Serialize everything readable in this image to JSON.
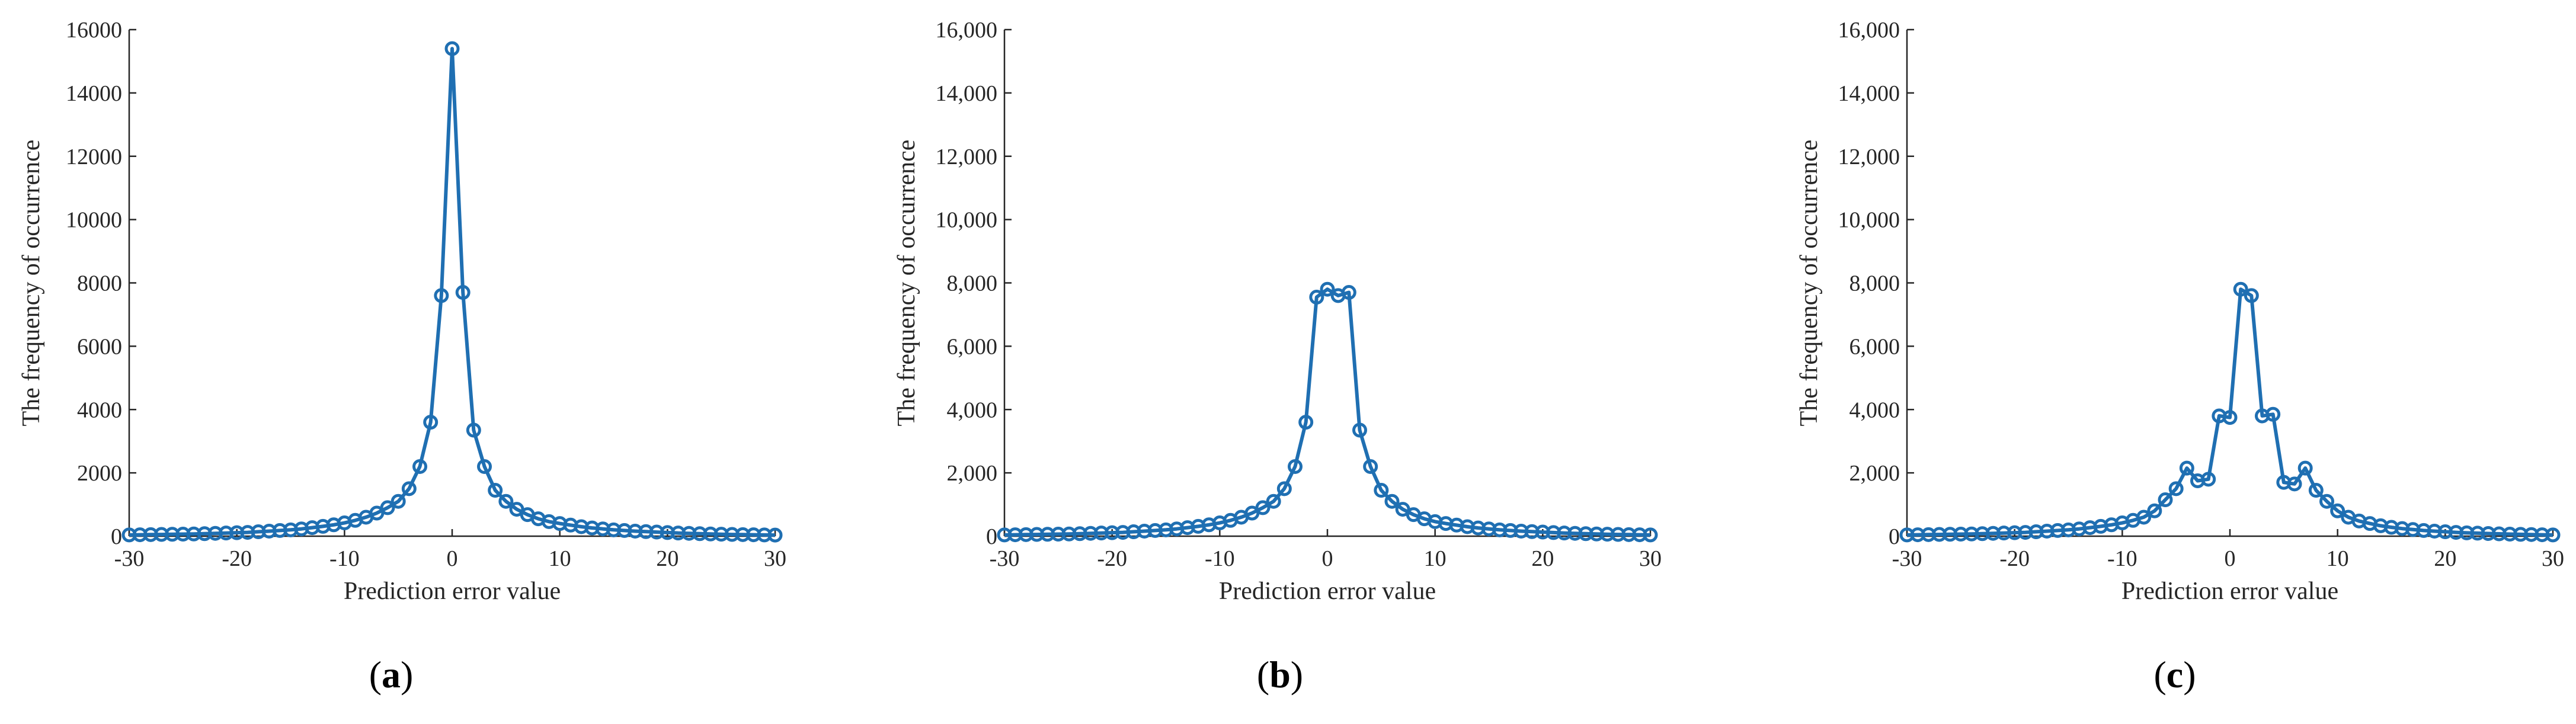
{
  "colors": {
    "series": "#1f6fb2",
    "axis": "#262626"
  },
  "chart_data": [
    {
      "type": "line",
      "panel_label": "a",
      "xlabel": "Prediction error value",
      "ylabel": "The frequency of occurrence",
      "xlim": [
        -30,
        30
      ],
      "ylim": [
        0,
        16000
      ],
      "xticks": [
        -30,
        -20,
        -10,
        0,
        10,
        20,
        30
      ],
      "xtick_labels": [
        "-30",
        "-20",
        "-10",
        "0",
        "10",
        "20",
        "30"
      ],
      "yticks": [
        0,
        2000,
        4000,
        6000,
        8000,
        10000,
        12000,
        14000,
        16000
      ],
      "ytick_labels": [
        "0",
        "2000",
        "4000",
        "6000",
        "8000",
        "10000",
        "12000",
        "14000",
        "16000"
      ],
      "grid": false,
      "marker": "circle",
      "x": [
        -30,
        -29,
        -28,
        -27,
        -26,
        -25,
        -24,
        -23,
        -22,
        -21,
        -20,
        -19,
        -18,
        -17,
        -16,
        -15,
        -14,
        -13,
        -12,
        -11,
        -10,
        -9,
        -8,
        -7,
        -6,
        -5,
        -4,
        -3,
        -2,
        -1,
        0,
        1,
        2,
        3,
        4,
        5,
        6,
        7,
        8,
        9,
        10,
        11,
        12,
        13,
        14,
        15,
        16,
        17,
        18,
        19,
        20,
        21,
        22,
        23,
        24,
        25,
        26,
        27,
        28,
        29,
        30
      ],
      "y": [
        40,
        45,
        50,
        55,
        60,
        65,
        70,
        80,
        90,
        100,
        110,
        120,
        140,
        160,
        180,
        200,
        230,
        270,
        310,
        360,
        420,
        500,
        600,
        730,
        900,
        1100,
        1500,
        2200,
        3600,
        7600,
        15400,
        7700,
        3350,
        2200,
        1450,
        1100,
        850,
        680,
        550,
        460,
        400,
        350,
        300,
        260,
        230,
        200,
        180,
        160,
        145,
        130,
        115,
        100,
        90,
        80,
        70,
        62,
        55,
        50,
        45,
        40,
        35
      ]
    },
    {
      "type": "line",
      "panel_label": "b",
      "xlabel": "Prediction error value",
      "ylabel": "The frequency of occurrence",
      "xlim": [
        -30,
        30
      ],
      "ylim": [
        0,
        16000
      ],
      "xticks": [
        -30,
        -20,
        -10,
        0,
        10,
        20,
        30
      ],
      "xtick_labels": [
        "-30",
        "-20",
        "-10",
        "0",
        "10",
        "20",
        "30"
      ],
      "yticks": [
        0,
        2000,
        4000,
        6000,
        8000,
        10000,
        12000,
        14000,
        16000
      ],
      "ytick_labels": [
        "0",
        "2,000",
        "4,000",
        "6,000",
        "8,000",
        "10,000",
        "12,000",
        "14,000",
        "16,000"
      ],
      "grid": false,
      "marker": "circle",
      "x": [
        -30,
        -29,
        -28,
        -27,
        -26,
        -25,
        -24,
        -23,
        -22,
        -21,
        -20,
        -19,
        -18,
        -17,
        -16,
        -15,
        -14,
        -13,
        -12,
        -11,
        -10,
        -9,
        -8,
        -7,
        -6,
        -5,
        -4,
        -3,
        -2,
        -1,
        0,
        1,
        2,
        3,
        4,
        5,
        6,
        7,
        8,
        9,
        10,
        11,
        12,
        13,
        14,
        15,
        16,
        17,
        18,
        19,
        20,
        21,
        22,
        23,
        24,
        25,
        26,
        27,
        28,
        29,
        30
      ],
      "y": [
        40,
        45,
        50,
        55,
        60,
        65,
        70,
        80,
        90,
        100,
        110,
        120,
        140,
        160,
        180,
        200,
        230,
        270,
        310,
        360,
        420,
        500,
        600,
        730,
        900,
        1100,
        1500,
        2200,
        3600,
        7550,
        7800,
        7600,
        7700,
        3350,
        2200,
        1450,
        1100,
        850,
        680,
        550,
        460,
        400,
        350,
        300,
        260,
        230,
        200,
        180,
        160,
        145,
        130,
        115,
        100,
        90,
        80,
        70,
        62,
        55,
        50,
        45,
        40
      ]
    },
    {
      "type": "line",
      "panel_label": "c",
      "xlabel": "Prediction error value",
      "ylabel": "The frequency of occurrence",
      "xlim": [
        -30,
        30
      ],
      "ylim": [
        0,
        16000
      ],
      "xticks": [
        -30,
        -20,
        -10,
        0,
        10,
        20,
        30
      ],
      "xtick_labels": [
        "-30",
        "-20",
        "-10",
        "0",
        "10",
        "20",
        "30"
      ],
      "yticks": [
        0,
        2000,
        4000,
        6000,
        8000,
        10000,
        12000,
        14000,
        16000
      ],
      "ytick_labels": [
        "0",
        "2,000",
        "4,000",
        "6,000",
        "8,000",
        "10,000",
        "12,000",
        "14,000",
        "16,000"
      ],
      "grid": false,
      "marker": "circle",
      "x": [
        -30,
        -29,
        -28,
        -27,
        -26,
        -25,
        -24,
        -23,
        -22,
        -21,
        -20,
        -19,
        -18,
        -17,
        -16,
        -15,
        -14,
        -13,
        -12,
        -11,
        -10,
        -9,
        -8,
        -7,
        -6,
        -5,
        -4,
        -3,
        -2,
        -1,
        0,
        1,
        2,
        3,
        4,
        5,
        6,
        7,
        8,
        9,
        10,
        11,
        12,
        13,
        14,
        15,
        16,
        17,
        18,
        19,
        20,
        21,
        22,
        23,
        24,
        25,
        26,
        27,
        28,
        29,
        30
      ],
      "y": [
        40,
        45,
        50,
        55,
        60,
        65,
        70,
        80,
        90,
        100,
        110,
        120,
        140,
        160,
        180,
        200,
        230,
        270,
        310,
        360,
        420,
        500,
        600,
        800,
        1150,
        1500,
        2150,
        1750,
        1800,
        3800,
        3750,
        7800,
        7600,
        3800,
        3850,
        1700,
        1650,
        2150,
        1450,
        1100,
        800,
        600,
        480,
        400,
        330,
        280,
        240,
        210,
        180,
        160,
        140,
        120,
        105,
        95,
        85,
        75,
        65,
        58,
        52,
        45,
        40
      ]
    }
  ]
}
